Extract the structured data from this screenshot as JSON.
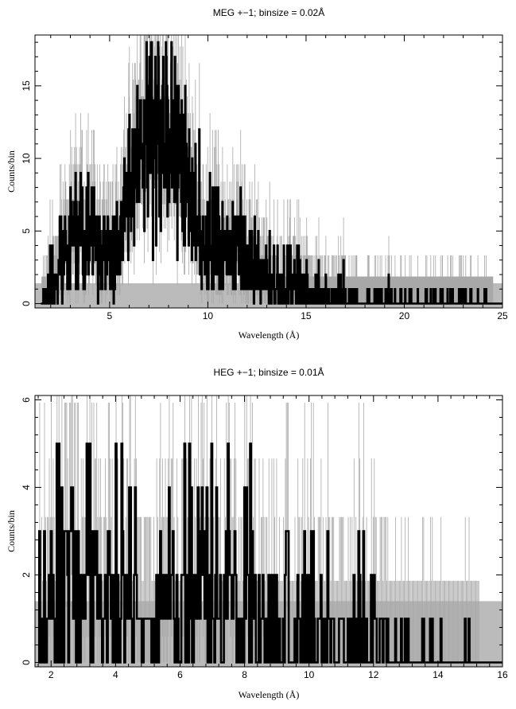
{
  "chart_data": [
    {
      "type": "line",
      "title": "MEG +−1; binsize = 0.02Å",
      "xlabel": "Wavelength (Å)",
      "ylabel": "Counts/bin",
      "xlim": [
        1.2,
        25.0
      ],
      "ylim": [
        -0.3,
        18.5
      ],
      "xticks": [
        5,
        10,
        15,
        20,
        25
      ],
      "yticks": [
        0,
        5,
        10,
        15
      ],
      "grid": false,
      "series": [
        {
          "role": "source counts (histogram)",
          "x": [
            1.5,
            2.0,
            2.5,
            3.0,
            3.5,
            4.0,
            4.5,
            5.0,
            5.5,
            6.0,
            6.5,
            7.0,
            7.5,
            8.0,
            8.5,
            9.0,
            9.5,
            10.0,
            10.5,
            11.0,
            11.5,
            12.0,
            12.5,
            13.0,
            13.5,
            14.0,
            14.5,
            15.0,
            15.5,
            16.0,
            16.5,
            17.0,
            17.5,
            18.0,
            19.0,
            20.0,
            21.0,
            22.0,
            23.0,
            24.0,
            25.0
          ],
          "y": [
            0,
            1,
            3,
            4,
            5,
            4,
            3,
            3,
            4,
            9,
            11,
            12,
            11,
            11,
            10,
            8,
            5,
            4,
            5,
            3,
            4,
            3,
            2,
            2,
            1,
            1,
            1,
            1,
            0.5,
            0.5,
            0.5,
            0.5,
            0.3,
            0.2,
            0.2,
            0.2,
            0.1,
            0.1,
            0.2,
            0.1,
            0
          ]
        },
        {
          "role": "background",
          "x": [
            1.2,
            25.0
          ],
          "y": [
            1.4,
            1.4
          ]
        }
      ]
    },
    {
      "type": "line",
      "title": "HEG +−1; binsize = 0.01Å",
      "xlabel": "Wavelength (Å)",
      "ylabel": "Counts/bin",
      "xlim": [
        1.5,
        16.0
      ],
      "ylim": [
        -0.1,
        6.1
      ],
      "xticks": [
        2,
        4,
        6,
        8,
        10,
        12,
        14,
        16
      ],
      "yticks": [
        0,
        2,
        4,
        6
      ],
      "grid": false,
      "series": [
        {
          "role": "source counts (histogram)",
          "x": [
            1.6,
            2.0,
            2.5,
            3.0,
            3.5,
            4.0,
            4.5,
            5.0,
            5.5,
            6.0,
            6.5,
            7.0,
            7.5,
            8.0,
            8.5,
            9.0,
            9.5,
            10.0,
            10.5,
            11.0,
            11.5,
            12.0,
            12.5,
            13.0,
            13.5,
            14.0,
            14.5,
            15.0,
            15.5,
            16.0
          ],
          "y": [
            1,
            1.5,
            2,
            2,
            1.5,
            1.5,
            1.5,
            1.5,
            1.5,
            2,
            2,
            2,
            1.5,
            1.5,
            1.3,
            1.2,
            1,
            1,
            1,
            0.8,
            0.7,
            0.5,
            0.4,
            0.1,
            0.1,
            0.1,
            0.1,
            0.1,
            0,
            0
          ]
        },
        {
          "role": "background",
          "x": [
            1.5,
            16.0
          ],
          "y": [
            1.4,
            1.4
          ]
        }
      ]
    }
  ]
}
